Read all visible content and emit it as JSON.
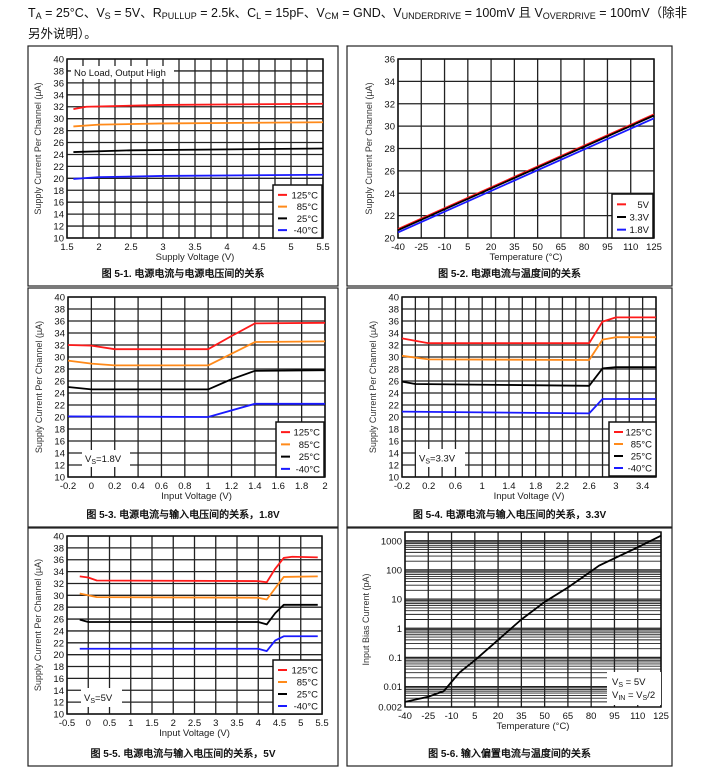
{
  "header": {
    "parts": [
      {
        "text": "T",
        "sub": "A"
      },
      {
        "text": " = 25°C、V",
        "sub": "S"
      },
      {
        "text": " = 5V、R",
        "sub": "PULLUP"
      },
      {
        "text": " = 2.5k、C",
        "sub": "L"
      },
      {
        "text": " = 15pF、V",
        "sub": "CM"
      },
      {
        "text": " = GND、V",
        "sub": "UNDERDRIVE"
      },
      {
        "text": " = 100mV 且 V",
        "sub": "OVERDRIVE"
      },
      {
        "text": " = 100mV（除非另外说明）。",
        "sub": ""
      }
    ]
  },
  "chart_data": [
    {
      "type": "line",
      "caption": "图 5-1. 电源电流与电源电压间的关系",
      "xlabel": "Supply Voltage (V)",
      "ylabel": "Supply Current Per Channel (µA)",
      "xlim": [
        1.5,
        5.5
      ],
      "ylim": [
        10,
        40
      ],
      "grid": true,
      "legend": "bottom-right",
      "xticks": [
        1.5,
        2,
        2.5,
        3,
        3.5,
        4,
        4.5,
        5,
        5.5
      ],
      "yticks": [
        10,
        12,
        14,
        16,
        18,
        20,
        22,
        24,
        26,
        28,
        30,
        32,
        34,
        36,
        38,
        40
      ],
      "annotation": {
        "main": "No Load, Output High",
        "sub": "",
        "rest": ""
      },
      "series": [
        {
          "name": "125°C",
          "color": "#ff1a1a",
          "points": [
            [
              1.6,
              31.6
            ],
            [
              1.8,
              32.0
            ],
            [
              3,
              32.3
            ],
            [
              5.5,
              32.5
            ]
          ]
        },
        {
          "name": "85°C",
          "color": "#ff8a1a",
          "points": [
            [
              1.6,
              28.7
            ],
            [
              2,
              29.0
            ],
            [
              3,
              29.2
            ],
            [
              5.5,
              29.4
            ]
          ]
        },
        {
          "name": "25°C",
          "color": "#000000",
          "points": [
            [
              1.6,
              24.4
            ],
            [
              2.5,
              24.7
            ],
            [
              5.5,
              25.0
            ]
          ]
        },
        {
          "name": "-40°C",
          "color": "#1a1aff",
          "points": [
            [
              1.6,
              19.9
            ],
            [
              2,
              20.2
            ],
            [
              3,
              20.4
            ],
            [
              5.5,
              20.6
            ]
          ]
        }
      ]
    },
    {
      "type": "line",
      "caption": "图 5-2. 电源电流与温度间的关系",
      "xlabel": "Temperature (°C)",
      "ylabel": "Supply Current Per Channel (µA)",
      "xlim": [
        -40,
        125
      ],
      "ylim": [
        20,
        36
      ],
      "grid": true,
      "legend": "bottom-right",
      "xticks": [
        -40,
        -25,
        -10,
        5,
        20,
        35,
        50,
        65,
        80,
        95,
        110,
        125
      ],
      "yticks": [
        20,
        22,
        24,
        26,
        28,
        30,
        32,
        34,
        36
      ],
      "series": [
        {
          "name": "5V",
          "color": "#ff1a1a",
          "points": [
            [
              -40,
              20.8
            ],
            [
              125,
              31.05
            ]
          ]
        },
        {
          "name": "3.3V",
          "color": "#000000",
          "points": [
            [
              -40,
              20.7
            ],
            [
              125,
              30.95
            ]
          ]
        },
        {
          "name": "1.8V",
          "color": "#1a1aff",
          "points": [
            [
              -40,
              20.5
            ],
            [
              125,
              30.7
            ]
          ]
        }
      ]
    },
    {
      "type": "line",
      "caption": "图 5-3. 电源电流与输入电压间的关系，1.8V",
      "xlabel": "Input Voltage (V)",
      "ylabel": "Supply Current  Per Channel (µA)",
      "xlim": [
        -0.2,
        2
      ],
      "ylim": [
        10,
        40
      ],
      "grid": true,
      "legend": "bottom-right",
      "xticks": [
        -0.2,
        0,
        0.2,
        0.4,
        0.6,
        0.8,
        1,
        1.2,
        1.4,
        1.6,
        1.8,
        2
      ],
      "yticks": [
        10,
        12,
        14,
        16,
        18,
        20,
        22,
        24,
        26,
        28,
        30,
        32,
        34,
        36,
        38,
        40
      ],
      "annotation": {
        "main": "V",
        "sub": "S",
        "rest": "=1.8V"
      },
      "series": [
        {
          "name": "125°C",
          "color": "#ff1a1a",
          "points": [
            [
              -0.2,
              32
            ],
            [
              0,
              31.9
            ],
            [
              0.2,
              31.3
            ],
            [
              1,
              31.3
            ],
            [
              1.2,
              33.5
            ],
            [
              1.4,
              35.6
            ],
            [
              2,
              35.7
            ]
          ]
        },
        {
          "name": "85°C",
          "color": "#ff8a1a",
          "points": [
            [
              -0.2,
              29.4
            ],
            [
              0,
              28.9
            ],
            [
              0.2,
              28.6
            ],
            [
              1,
              28.6
            ],
            [
              1.4,
              32.5
            ],
            [
              2,
              32.6
            ]
          ]
        },
        {
          "name": "25°C",
          "color": "#000000",
          "points": [
            [
              -0.2,
              25
            ],
            [
              0,
              24.6
            ],
            [
              1,
              24.6
            ],
            [
              1.2,
              26.3
            ],
            [
              1.4,
              27.7
            ],
            [
              2,
              27.8
            ]
          ]
        },
        {
          "name": "-40°C",
          "color": "#1a1aff",
          "points": [
            [
              -0.2,
              20.1
            ],
            [
              1,
              20
            ],
            [
              1.4,
              22.2
            ],
            [
              2,
              22.2
            ]
          ]
        }
      ]
    },
    {
      "type": "line",
      "caption": "图 5-4. 电源电流与输入电压间的关系，3.3V",
      "xlabel": "Input Voltage (V)",
      "ylabel": "Supply Current  Per Channel (µA)",
      "xlim": [
        -0.2,
        3.6
      ],
      "ylim": [
        10,
        40
      ],
      "grid": true,
      "legend": "bottom-right",
      "xticks": [
        -0.2,
        0.2,
        0.6,
        1,
        1.4,
        1.8,
        2.2,
        2.6,
        3,
        3.4
      ],
      "yticks": [
        10,
        12,
        14,
        16,
        18,
        20,
        22,
        24,
        26,
        28,
        30,
        32,
        34,
        36,
        38,
        40
      ],
      "annotation": {
        "main": "V",
        "sub": "S",
        "rest": "=3.3V"
      },
      "series": [
        {
          "name": "125°C",
          "color": "#ff1a1a",
          "points": [
            [
              -0.2,
              33.1
            ],
            [
              0.2,
              32.3
            ],
            [
              2.6,
              32.3
            ],
            [
              2.8,
              35.9
            ],
            [
              3,
              36.6
            ],
            [
              3.6,
              36.6
            ]
          ]
        },
        {
          "name": "85°C",
          "color": "#ff8a1a",
          "points": [
            [
              -0.2,
              30.2
            ],
            [
              0.2,
              29.6
            ],
            [
              2.6,
              29.5
            ],
            [
              2.8,
              32.9
            ],
            [
              3,
              33.3
            ],
            [
              3.6,
              33.3
            ]
          ]
        },
        {
          "name": "25°C",
          "color": "#000000",
          "points": [
            [
              -0.2,
              25.9
            ],
            [
              0,
              25.5
            ],
            [
              2.6,
              25.2
            ],
            [
              2.8,
              28.1
            ],
            [
              3,
              28.3
            ],
            [
              3.6,
              28.3
            ]
          ]
        },
        {
          "name": "-40°C",
          "color": "#1a1aff",
          "points": [
            [
              -0.2,
              20.9
            ],
            [
              2.6,
              20.6
            ],
            [
              2.8,
              23
            ],
            [
              3.6,
              23
            ]
          ]
        }
      ]
    },
    {
      "type": "line",
      "caption": "图 5-5. 电源电流与输入电压间的关系，5V",
      "xlabel": "Input Voltage (V)",
      "ylabel": "Supply Current Per Channel (µA)",
      "xlim": [
        -0.5,
        5.5
      ],
      "ylim": [
        10,
        40
      ],
      "grid": true,
      "legend": "bottom-right",
      "xticks": [
        -0.5,
        0,
        0.5,
        1,
        1.5,
        2,
        2.5,
        3,
        3.5,
        4,
        4.5,
        5,
        5.5
      ],
      "yticks": [
        10,
        12,
        14,
        16,
        18,
        20,
        22,
        24,
        26,
        28,
        30,
        32,
        34,
        36,
        38,
        40
      ],
      "annotation": {
        "main": "V",
        "sub": "S",
        "rest": "=5V"
      },
      "series": [
        {
          "name": "125°C",
          "color": "#ff1a1a",
          "points": [
            [
              -0.2,
              33.2
            ],
            [
              0,
              33
            ],
            [
              0.2,
              32.5
            ],
            [
              4,
              32.4
            ],
            [
              4.2,
              32.2
            ],
            [
              4.4,
              34.5
            ],
            [
              4.6,
              36.3
            ],
            [
              4.8,
              36.5
            ],
            [
              5.4,
              36.4
            ]
          ]
        },
        {
          "name": "85°C",
          "color": "#ff8a1a",
          "points": [
            [
              -0.2,
              30.3
            ],
            [
              0.2,
              29.7
            ],
            [
              4,
              29.6
            ],
            [
              4.2,
              29.3
            ],
            [
              4.6,
              33.1
            ],
            [
              5.4,
              33.2
            ]
          ]
        },
        {
          "name": "25°C",
          "color": "#000000",
          "points": [
            [
              -0.2,
              25.9
            ],
            [
              0,
              25.5
            ],
            [
              4,
              25.5
            ],
            [
              4.2,
              25.1
            ],
            [
              4.4,
              27
            ],
            [
              4.6,
              28.4
            ],
            [
              5.4,
              28.4
            ]
          ]
        },
        {
          "name": "-40°C",
          "color": "#1a1aff",
          "points": [
            [
              -0.2,
              21
            ],
            [
              4,
              21
            ],
            [
              4.2,
              20.6
            ],
            [
              4.4,
              22.4
            ],
            [
              4.6,
              23.1
            ],
            [
              5.4,
              23.1
            ]
          ]
        }
      ]
    },
    {
      "type": "line",
      "caption": "图 5-6. 输入偏置电流与温度间的关系",
      "xlabel": "Temperature (°C)",
      "ylabel": "Input Bias Current (pA)",
      "xlim": [
        -40,
        125
      ],
      "ylim": [
        0.002,
        2000
      ],
      "yscale": "log",
      "grid": true,
      "xticks": [
        -40,
        -25,
        -10,
        5,
        20,
        35,
        50,
        65,
        80,
        95,
        110,
        125
      ],
      "yticks": [
        0.002,
        0.01,
        0.1,
        1,
        10,
        100,
        1000
      ],
      "annotation_lines": [
        {
          "main": "V",
          "sub": "S",
          "rest": " = 5V"
        },
        {
          "main": "V",
          "sub": "IN",
          "rest": " = V",
          "sub2": "S",
          "rest2": "/2"
        }
      ],
      "series": [
        {
          "color": "#000000",
          "points": [
            [
              -40,
              0.003
            ],
            [
              -25,
              0.0045
            ],
            [
              -15,
              0.007
            ],
            [
              -5,
              0.03
            ],
            [
              5,
              0.08
            ],
            [
              20,
              0.4
            ],
            [
              35,
              2
            ],
            [
              50,
              8
            ],
            [
              65,
              25
            ],
            [
              80,
              90
            ],
            [
              85,
              140
            ],
            [
              95,
              250
            ],
            [
              110,
              600
            ],
            [
              125,
              1500
            ]
          ]
        }
      ]
    }
  ]
}
